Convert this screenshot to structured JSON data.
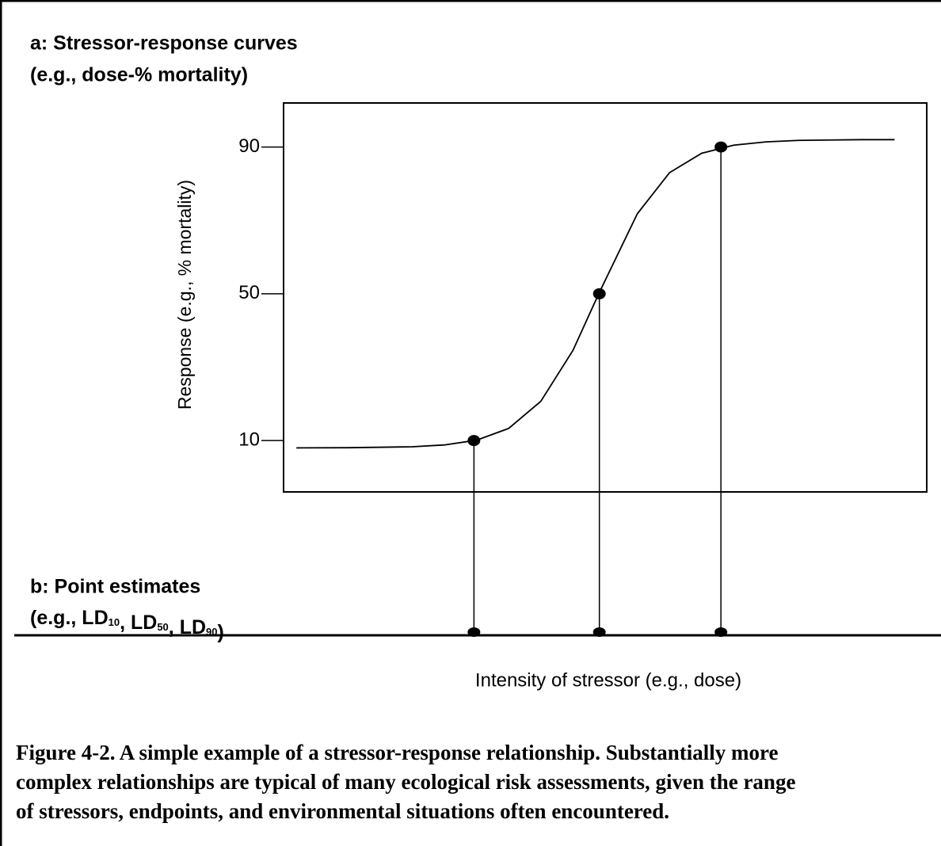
{
  "chart_data": {
    "type": "line",
    "title": "a: Stressor-response curves",
    "subtitle": "(e.g., dose-% mortality)",
    "y_label": "Response (e.g., % mortality)",
    "x_label": "Intensity of stressor (e.g., dose)",
    "ylim": [
      -4,
      102
    ],
    "yticks": [
      10,
      50,
      90
    ],
    "xlim": [
      0,
      100
    ],
    "color": "#000000",
    "curve": {
      "x": [
        2,
        10,
        20,
        25,
        30,
        35,
        40,
        45,
        49,
        55,
        60,
        65,
        70,
        75,
        80,
        85,
        90,
        95
      ],
      "values": [
        8,
        8.05,
        8.3,
        8.8,
        10.1,
        13.3,
        20.7,
        34.6,
        50,
        71.8,
        83,
        88.3,
        90.5,
        91.4,
        91.8,
        91.9,
        92,
        92
      ]
    },
    "points": {
      "x": [
        29.6,
        49.1,
        68
      ],
      "values": [
        10,
        50,
        90
      ]
    },
    "point_title": "b: Point estimates",
    "point_label_prefix": "(e.g., ",
    "point_labels": [
      {
        "text": "LD",
        "sub": "10"
      },
      {
        "text": "LD",
        "sub": "50"
      },
      {
        "text": "LD",
        "sub": "90"
      }
    ],
    "point_label_separator": ", ",
    "point_label_suffix": ")"
  },
  "caption": [
    "Figure 4-2.  A simple example of a stressor-response relationship.  Substantially more",
    "complex relationships are typical of many ecological risk assessments, given the range",
    "of stressors, endpoints, and environmental situations often encountered."
  ]
}
